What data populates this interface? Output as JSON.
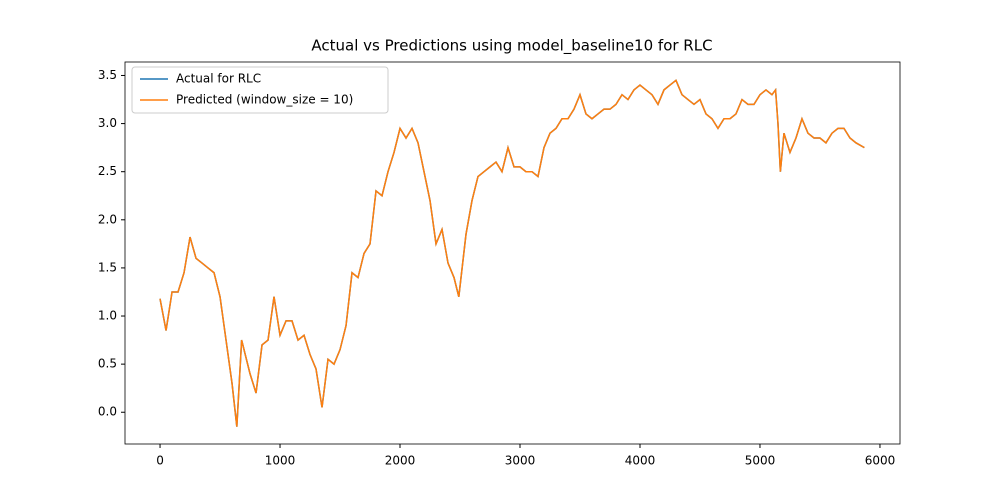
{
  "chart_data": {
    "type": "line",
    "title": "Actual vs Predictions using model_baseline10 for RLC",
    "x": [
      0,
      50,
      100,
      150,
      200,
      250,
      300,
      350,
      400,
      450,
      500,
      550,
      600,
      640,
      680,
      750,
      800,
      850,
      900,
      950,
      1000,
      1050,
      1100,
      1150,
      1200,
      1250,
      1300,
      1350,
      1400,
      1450,
      1500,
      1550,
      1600,
      1650,
      1700,
      1750,
      1800,
      1850,
      1900,
      1950,
      2000,
      2050,
      2100,
      2150,
      2200,
      2250,
      2300,
      2350,
      2400,
      2450,
      2490,
      2550,
      2600,
      2650,
      2700,
      2750,
      2800,
      2850,
      2900,
      2950,
      3000,
      3050,
      3100,
      3150,
      3200,
      3250,
      3300,
      3350,
      3400,
      3450,
      3500,
      3550,
      3600,
      3650,
      3700,
      3750,
      3800,
      3850,
      3900,
      3950,
      4000,
      4050,
      4100,
      4150,
      4200,
      4250,
      4300,
      4350,
      4400,
      4450,
      4500,
      4550,
      4600,
      4650,
      4700,
      4750,
      4800,
      4850,
      4900,
      4950,
      5000,
      5050,
      5100,
      5130,
      5150,
      5170,
      5200,
      5250,
      5300,
      5350,
      5400,
      5450,
      5500,
      5550,
      5600,
      5650,
      5700,
      5750,
      5800,
      5870
    ],
    "series": [
      {
        "name": "Actual for RLC",
        "color": "#1f77b4",
        "values": [
          1.18,
          0.85,
          1.25,
          1.25,
          1.45,
          1.82,
          1.6,
          1.55,
          1.5,
          1.45,
          1.2,
          0.75,
          0.3,
          -0.15,
          0.75,
          0.4,
          0.2,
          0.7,
          0.75,
          1.2,
          0.8,
          0.95,
          0.95,
          0.75,
          0.8,
          0.6,
          0.45,
          0.05,
          0.55,
          0.5,
          0.65,
          0.9,
          1.45,
          1.4,
          1.65,
          1.75,
          2.3,
          2.25,
          2.5,
          2.7,
          2.95,
          2.85,
          2.95,
          2.8,
          2.5,
          2.2,
          1.75,
          1.9,
          1.55,
          1.4,
          1.2,
          1.85,
          2.2,
          2.45,
          2.5,
          2.55,
          2.6,
          2.5,
          2.75,
          2.55,
          2.55,
          2.5,
          2.5,
          2.45,
          2.75,
          2.9,
          2.95,
          3.05,
          3.05,
          3.15,
          3.3,
          3.1,
          3.05,
          3.1,
          3.15,
          3.15,
          3.2,
          3.3,
          3.25,
          3.35,
          3.4,
          3.35,
          3.3,
          3.2,
          3.35,
          3.4,
          3.45,
          3.3,
          3.25,
          3.2,
          3.25,
          3.1,
          3.05,
          2.95,
          3.05,
          3.05,
          3.1,
          3.25,
          3.2,
          3.2,
          3.3,
          3.35,
          3.3,
          3.35,
          3.0,
          2.5,
          2.9,
          2.7,
          2.85,
          3.05,
          2.9,
          2.85,
          2.85,
          2.8,
          2.9,
          2.95,
          2.95,
          2.85,
          2.8,
          2.75
        ]
      },
      {
        "name": "Predicted (window_size = 10)",
        "color": "#ff7f0e",
        "values": [
          1.18,
          0.85,
          1.25,
          1.25,
          1.45,
          1.82,
          1.6,
          1.55,
          1.5,
          1.45,
          1.2,
          0.75,
          0.3,
          -0.15,
          0.75,
          0.4,
          0.2,
          0.7,
          0.75,
          1.2,
          0.8,
          0.95,
          0.95,
          0.75,
          0.8,
          0.6,
          0.45,
          0.05,
          0.55,
          0.5,
          0.65,
          0.9,
          1.45,
          1.4,
          1.65,
          1.75,
          2.3,
          2.25,
          2.5,
          2.7,
          2.95,
          2.85,
          2.95,
          2.8,
          2.5,
          2.2,
          1.75,
          1.9,
          1.55,
          1.4,
          1.2,
          1.85,
          2.2,
          2.45,
          2.5,
          2.55,
          2.6,
          2.5,
          2.75,
          2.55,
          2.55,
          2.5,
          2.5,
          2.45,
          2.75,
          2.9,
          2.95,
          3.05,
          3.05,
          3.15,
          3.3,
          3.1,
          3.05,
          3.1,
          3.15,
          3.15,
          3.2,
          3.3,
          3.25,
          3.35,
          3.4,
          3.35,
          3.3,
          3.2,
          3.35,
          3.4,
          3.45,
          3.3,
          3.25,
          3.2,
          3.25,
          3.1,
          3.05,
          2.95,
          3.05,
          3.05,
          3.1,
          3.25,
          3.2,
          3.2,
          3.3,
          3.35,
          3.3,
          3.35,
          3.0,
          2.5,
          2.9,
          2.7,
          2.85,
          3.05,
          2.9,
          2.85,
          2.85,
          2.8,
          2.9,
          2.95,
          2.95,
          2.85,
          2.8,
          2.75
        ]
      }
    ],
    "xlim": [
      -292,
      6167
    ],
    "xticks": [
      0,
      1000,
      2000,
      3000,
      4000,
      5000,
      6000
    ],
    "ylim": [
      -0.33,
      3.64
    ],
    "yticks": [
      {
        "value": 0,
        "label": "0.0"
      },
      {
        "value": 0.5,
        "label": "0.5"
      },
      {
        "value": 1,
        "label": "1.0"
      },
      {
        "value": 1.5,
        "label": "1.5"
      },
      {
        "value": 2,
        "label": "2.0"
      },
      {
        "value": 2.5,
        "label": "2.5"
      },
      {
        "value": 3,
        "label": "3.0"
      },
      {
        "value": 3.5,
        "label": "3.5"
      }
    ],
    "legend": "upper left"
  }
}
